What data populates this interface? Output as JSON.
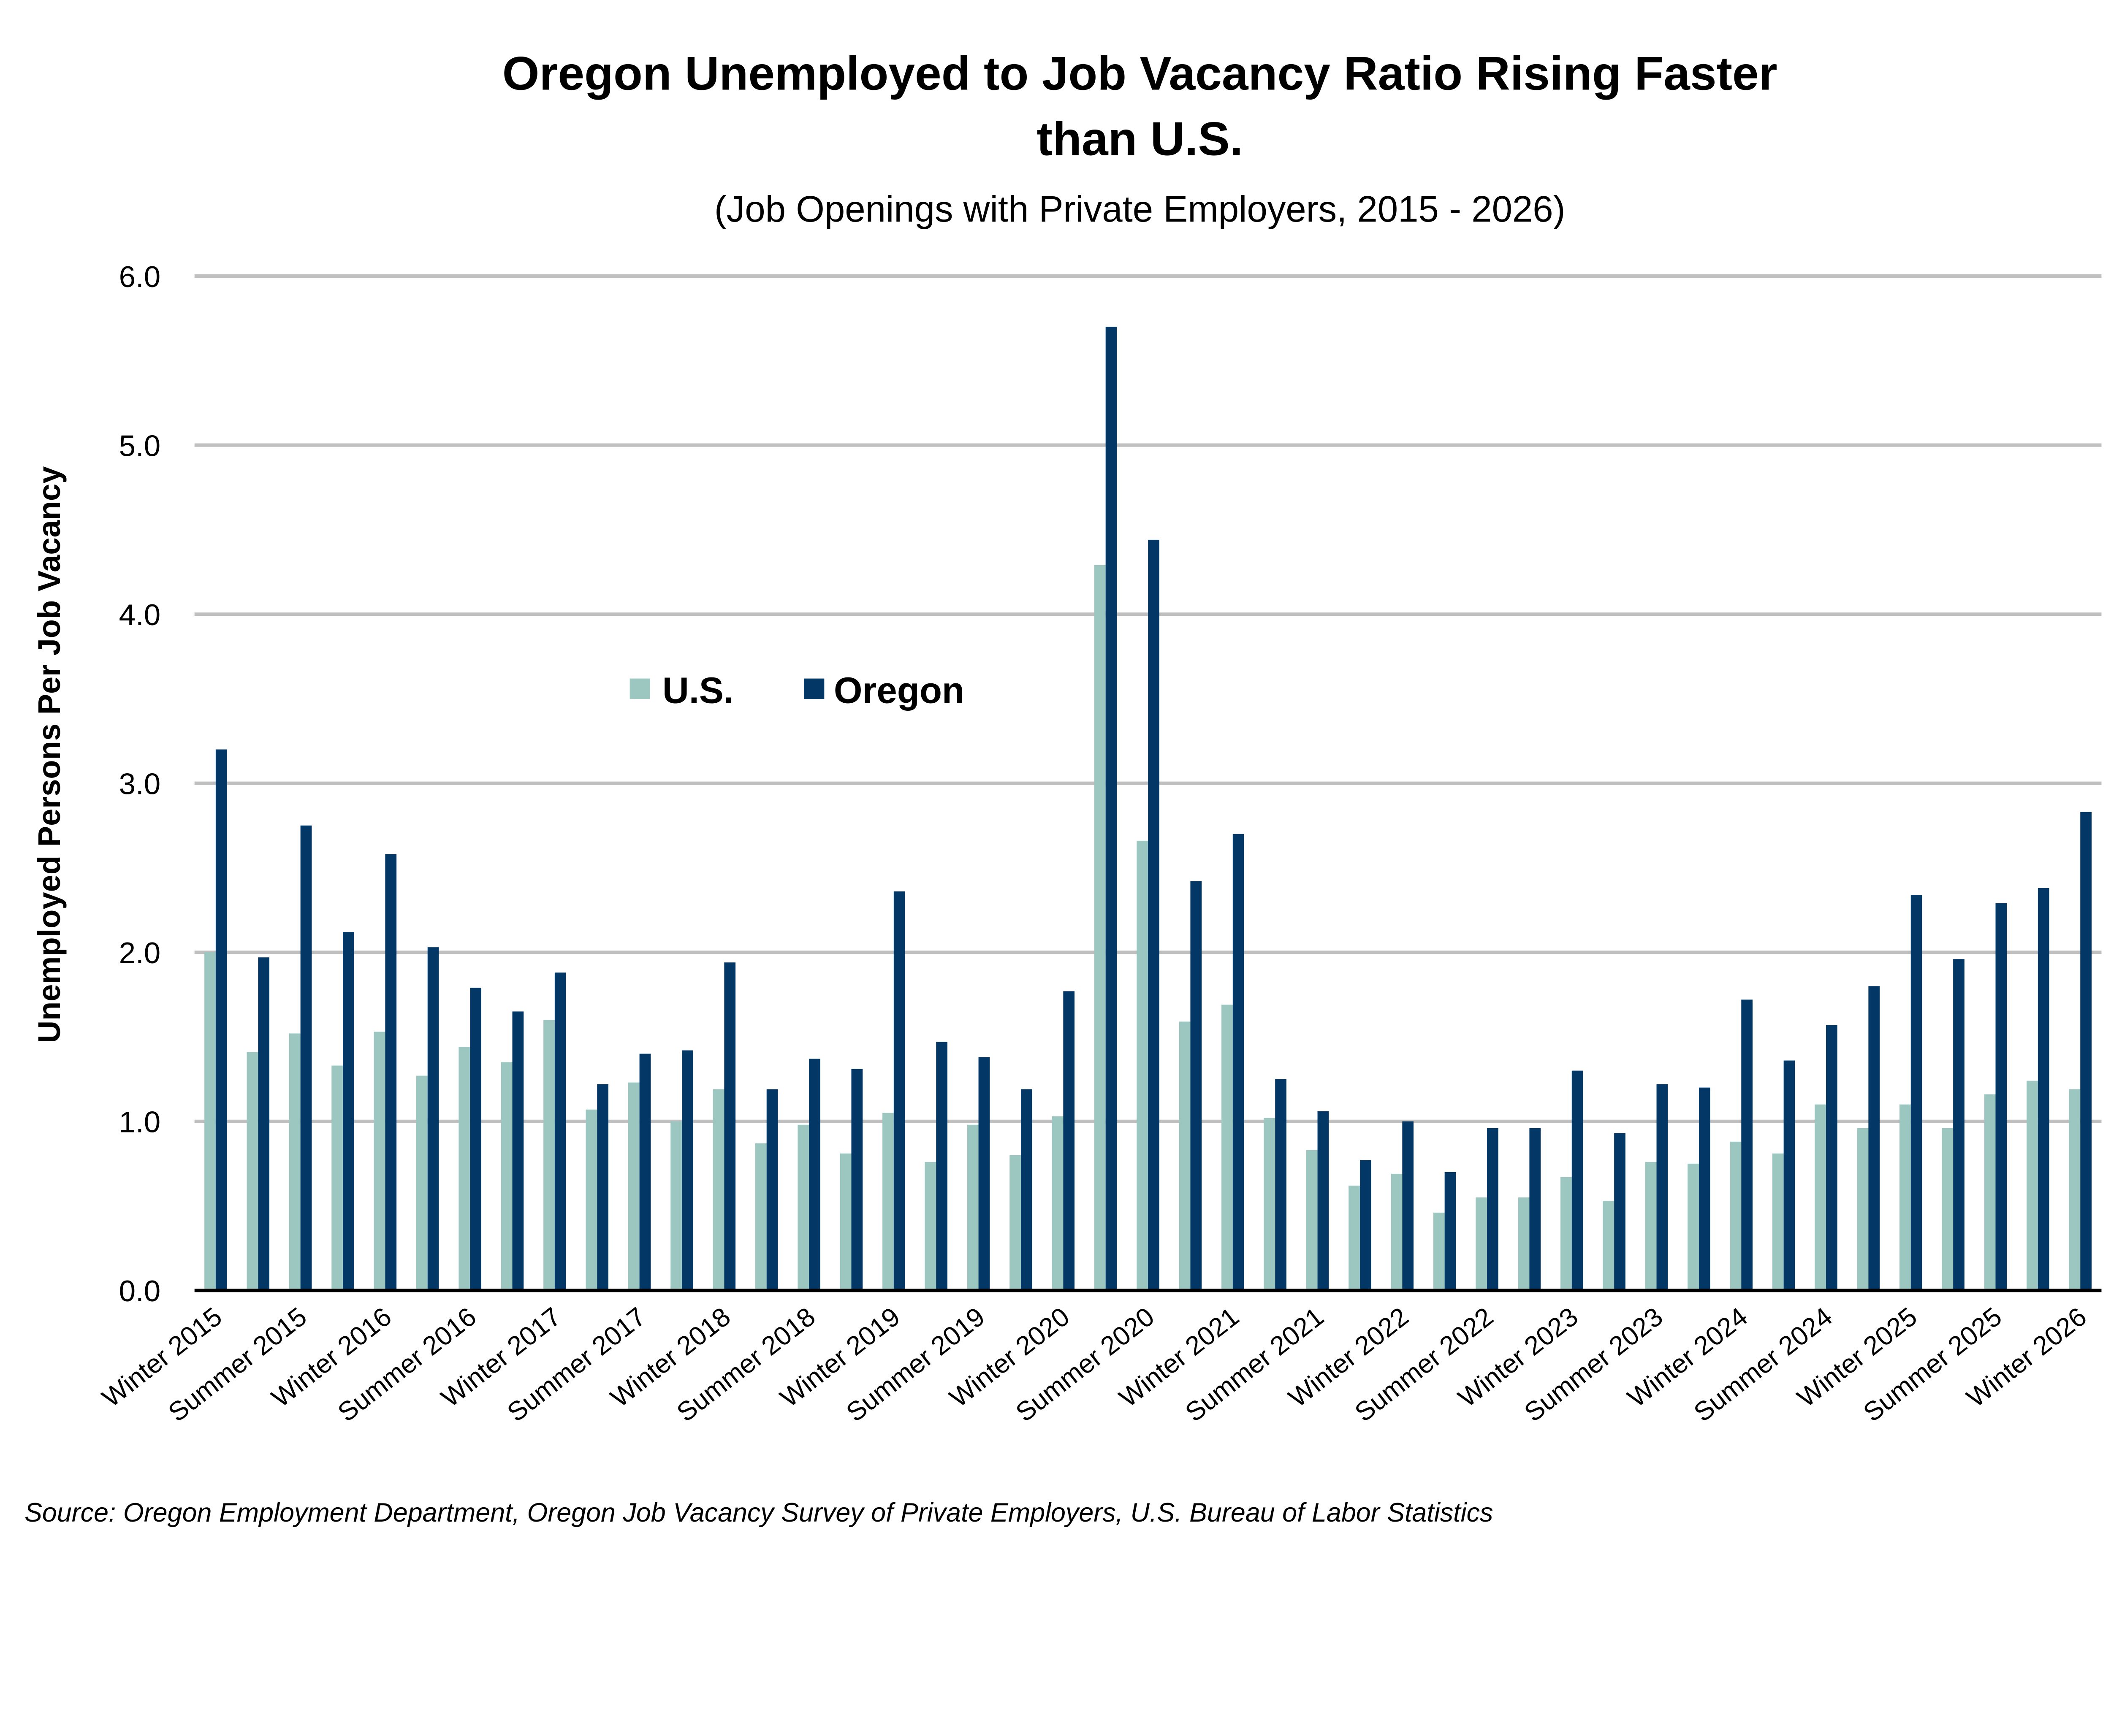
{
  "chart_data": {
    "type": "bar",
    "title": "Oregon Unemployed to Job Vacancy Ratio Rising Faster than U.S.",
    "title_lines": [
      "Oregon Unemployed to Job Vacancy Ratio Rising Faster",
      "than U.S."
    ],
    "subtitle": "(Job Openings with Private Employers, 2015 - 2026)",
    "xlabel": "",
    "ylabel": "Unemployed Persons Per Job Vacancy",
    "ylim": [
      0,
      6
    ],
    "yticks": [
      "0.0",
      "1.0",
      "2.0",
      "3.0",
      "4.0",
      "5.0",
      "6.0"
    ],
    "grid": true,
    "legend_position": "center-left",
    "categories": [
      "Winter 2015",
      "",
      "Summer 2015",
      "",
      "Winter 2016",
      "",
      "Summer 2016",
      "",
      "Winter 2017",
      "",
      "Summer 2017",
      "",
      "Winter 2018",
      "",
      "Summer 2018",
      "",
      "Winter 2019",
      "",
      "Summer 2019",
      "",
      "Winter 2020",
      "",
      "Summer 2020",
      "",
      "Winter 2021",
      "",
      "Summer 2021",
      "",
      "Winter 2022",
      "",
      "Summer 2022",
      "",
      "Winter 2023",
      "",
      "Summer 2023",
      "",
      "Winter 2024",
      "",
      "Summer 2024",
      "",
      "Winter 2025",
      "",
      "Summer 2025",
      "",
      "Winter 2026"
    ],
    "series": [
      {
        "name": "U.S.",
        "color": "#9bc7c0",
        "values": [
          2.0,
          1.41,
          1.52,
          1.33,
          1.53,
          1.27,
          1.44,
          1.35,
          1.6,
          1.07,
          1.23,
          1.0,
          1.19,
          0.87,
          0.98,
          0.81,
          1.05,
          0.76,
          0.98,
          0.8,
          1.03,
          4.29,
          2.66,
          1.59,
          1.69,
          1.02,
          0.83,
          0.62,
          0.69,
          0.46,
          0.55,
          0.55,
          0.67,
          0.53,
          0.76,
          0.75,
          0.88,
          0.81,
          1.1,
          0.96,
          1.1,
          0.96,
          1.16,
          1.24,
          1.19
        ]
      },
      {
        "name": "Oregon",
        "color": "#033766",
        "values": [
          3.2,
          1.97,
          2.75,
          2.12,
          2.58,
          2.03,
          1.79,
          1.65,
          1.88,
          1.22,
          1.4,
          1.42,
          1.94,
          1.19,
          1.37,
          1.31,
          2.36,
          1.47,
          1.38,
          1.19,
          1.77,
          5.7,
          4.44,
          2.42,
          2.7,
          1.25,
          1.06,
          0.77,
          1.0,
          0.7,
          0.96,
          0.96,
          1.3,
          0.93,
          1.22,
          1.2,
          1.72,
          1.36,
          1.57,
          1.8,
          2.34,
          1.96,
          2.29,
          2.38,
          2.83
        ]
      }
    ],
    "source": "Source: Oregon Employment Department, Oregon Job Vacancy Survey of Private Employers, U.S. Bureau of Labor Statistics"
  }
}
